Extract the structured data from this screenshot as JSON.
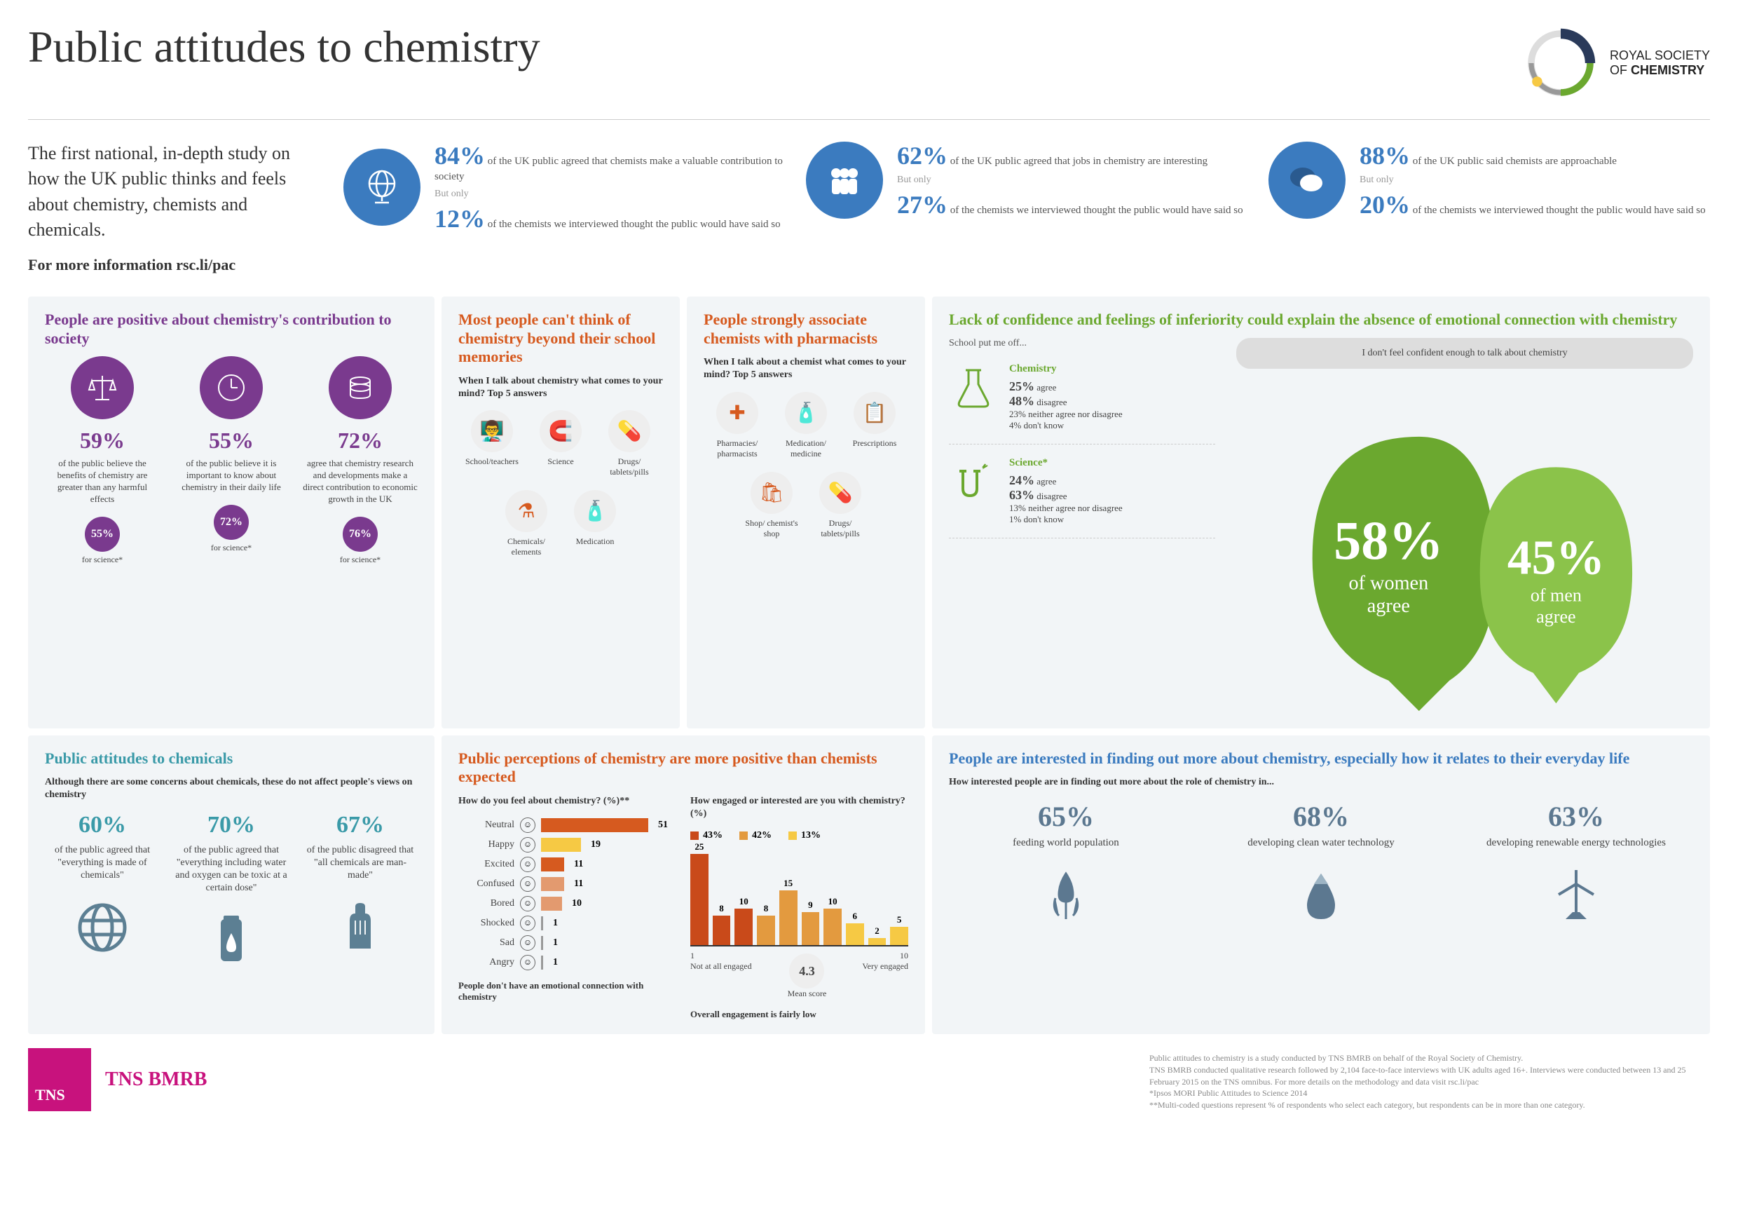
{
  "header": {
    "title": "Public attitudes to chemistry",
    "logo_line1": "ROYAL SOCIETY",
    "logo_line2": "OF CHEMISTRY"
  },
  "intro": {
    "text": "The first national, in-depth study on how the UK public thinks and feels about chemistry, chemists and chemicals.",
    "link_prefix": "For more information ",
    "link": "rsc.li/pac"
  },
  "topstats": [
    {
      "pct1": "84%",
      "line1": " of the UK public agreed that chemists make a valuable contribution to society",
      "pct2": "12%",
      "line2": " of the chemists we interviewed thought the public would have said so"
    },
    {
      "pct1": "62%",
      "line1": " of the UK public agreed that jobs in chemistry are interesting",
      "pct2": "27%",
      "line2": " of the chemists we interviewed thought the public would have said so"
    },
    {
      "pct1": "88%",
      "line1": " of the UK public said chemists are approachable",
      "pct2": "20%",
      "line2": " of the chemists we interviewed thought the public would have said so"
    }
  ],
  "but_only": "But only",
  "purple": {
    "title": "People are positive about chemistry's contribution to society",
    "cols": [
      {
        "pct": "59%",
        "desc": "of the public believe the benefits of chemistry are greater than any harmful effects",
        "sci_pct": "55%",
        "sci_label": "for science*"
      },
      {
        "pct": "55%",
        "desc": "of the public believe it is important to know about chemistry in their daily life",
        "sci_pct": "72%",
        "sci_label": "for science*"
      },
      {
        "pct": "72%",
        "desc": "agree that chemistry research and developments make a direct contribution to economic growth in the UK",
        "sci_pct": "76%",
        "sci_label": "for science*"
      }
    ]
  },
  "orange1": {
    "title": "Most people can't think of chemistry beyond their school memories",
    "sub": "When I talk about chemistry what comes to your mind? Top 5 answers",
    "items": [
      "School/teachers",
      "Science",
      "Drugs/ tablets/pills",
      "Chemicals/ elements",
      "Medication"
    ],
    "glyphs": [
      "👨‍🏫",
      "🧲",
      "💊",
      "⚗",
      "🧴"
    ]
  },
  "orange2": {
    "title": "People strongly associate chemists with pharmacists",
    "sub": "When I talk about a chemist what comes to your mind? Top 5 answers",
    "items": [
      "Pharmacies/ pharmacists",
      "Medication/ medicine",
      "Prescriptions",
      "Shop/ chemist's shop",
      "Drugs/ tablets/pills"
    ],
    "glyphs": [
      "✚",
      "🧴",
      "📋",
      "🛍",
      "💊"
    ]
  },
  "green": {
    "title": "Lack of confidence and feelings of inferiority could explain the absence of emotional connection with chemistry",
    "schoolput": "School put me off...",
    "rows": [
      {
        "name": "Chemistry",
        "agree": "25%",
        "disagree": "48%",
        "neither": "23% neither agree nor disagree",
        "dk": "4%  don't know"
      },
      {
        "name": "Science*",
        "agree": "24%",
        "disagree": "63%",
        "neither": "13% neither agree nor disagree",
        "dk": "1% don't know"
      }
    ],
    "bubble": "I don't feel confident enough to talk about chemistry",
    "women_pct": "58%",
    "women_label": "of women agree",
    "men_pct": "45%",
    "men_label": "of men agree"
  },
  "teal": {
    "title": "Public attitudes to chemicals",
    "sub": "Although there are some concerns about chemicals, these do not affect people's views on chemistry",
    "cols": [
      {
        "pct": "60%",
        "desc": "of the public agreed that \"everything is made of chemicals\""
      },
      {
        "pct": "70%",
        "desc": "of the public agreed that \"everything including water and oxygen can be toxic at a certain dose\""
      },
      {
        "pct": "67%",
        "desc": "of the public disagreed that \"all chemicals are man-made\""
      }
    ]
  },
  "percep": {
    "title": "Public perceptions of chemistry are more positive than chemists expected",
    "q1": "How do you feel about chemistry? (%)**",
    "q2": "How engaged or interested are you with chemistry? (%)",
    "feel": [
      {
        "label": "Neutral",
        "val": 51,
        "color": "#d65a1f"
      },
      {
        "label": "Happy",
        "val": 19,
        "color": "#f6c944"
      },
      {
        "label": "Excited",
        "val": 11,
        "color": "#d65a1f"
      },
      {
        "label": "Confused",
        "val": 11,
        "color": "#e39a6f"
      },
      {
        "label": "Bored",
        "val": 10,
        "color": "#e39a6f"
      },
      {
        "label": "Shocked",
        "val": 1,
        "color": "#999"
      },
      {
        "label": "Sad",
        "val": 1,
        "color": "#999"
      },
      {
        "label": "Angry",
        "val": 1,
        "color": "#999"
      }
    ],
    "foot1": "People don't have an emotional connection with chemistry",
    "legend": [
      {
        "pct": "43%",
        "color": "#c94a1a"
      },
      {
        "pct": "42%",
        "color": "#e39a3f"
      },
      {
        "pct": "13%",
        "color": "#f6c944"
      }
    ],
    "bars": [
      {
        "v": 25,
        "color": "#c94a1a"
      },
      {
        "v": 8,
        "color": "#c94a1a"
      },
      {
        "v": 10,
        "color": "#c94a1a"
      },
      {
        "v": 8,
        "color": "#e39a3f"
      },
      {
        "v": 15,
        "color": "#e39a3f"
      },
      {
        "v": 9,
        "color": "#e39a3f"
      },
      {
        "v": 10,
        "color": "#e39a3f"
      },
      {
        "v": 6,
        "color": "#f6c944"
      },
      {
        "v": 2,
        "color": "#f6c944"
      },
      {
        "v": 5,
        "color": "#f6c944"
      }
    ],
    "axis_left": "Not at all engaged",
    "axis_right": "Very engaged",
    "axis_1": "1",
    "axis_10": "10",
    "mean_label": "Mean score",
    "mean_val": "4.3",
    "foot2": "Overall engagement is fairly low"
  },
  "interest": {
    "title": "People are interested in finding out more about chemistry, especially how it relates to their everyday life",
    "sub": "How interested people are in finding out more about the role of chemistry in...",
    "cols": [
      {
        "pct": "65%",
        "desc": "feeding world population"
      },
      {
        "pct": "68%",
        "desc": "developing clean water technology"
      },
      {
        "pct": "63%",
        "desc": "developing renewable energy technologies"
      }
    ]
  },
  "footer": {
    "tns": "TNS",
    "tns_bmrb": "TNS BMRB",
    "fine1": "Public attitudes to chemistry is a study conducted by TNS BMRB on behalf of the Royal Society of Chemistry.",
    "fine2": "TNS BMRB conducted qualitative research followed by 2,104 face-to-face interviews with UK adults aged 16+. Interviews were conducted between 13 and 25 February 2015 on the TNS omnibus. For more details on the methodology and data visit rsc.li/pac",
    "fine3": "*Ipsos MORI Public Attitudes to Science 2014",
    "fine4": "**Multi-coded questions represent % of respondents who select each category, but respondents can be in more than one category."
  },
  "colors": {
    "blue": "#3b7bbf",
    "purple": "#7a3a8e",
    "orange": "#d65a1f",
    "green": "#6ba82f",
    "teal": "#3a9aa8",
    "slate": "#5c7890",
    "pink": "#c8127d"
  }
}
